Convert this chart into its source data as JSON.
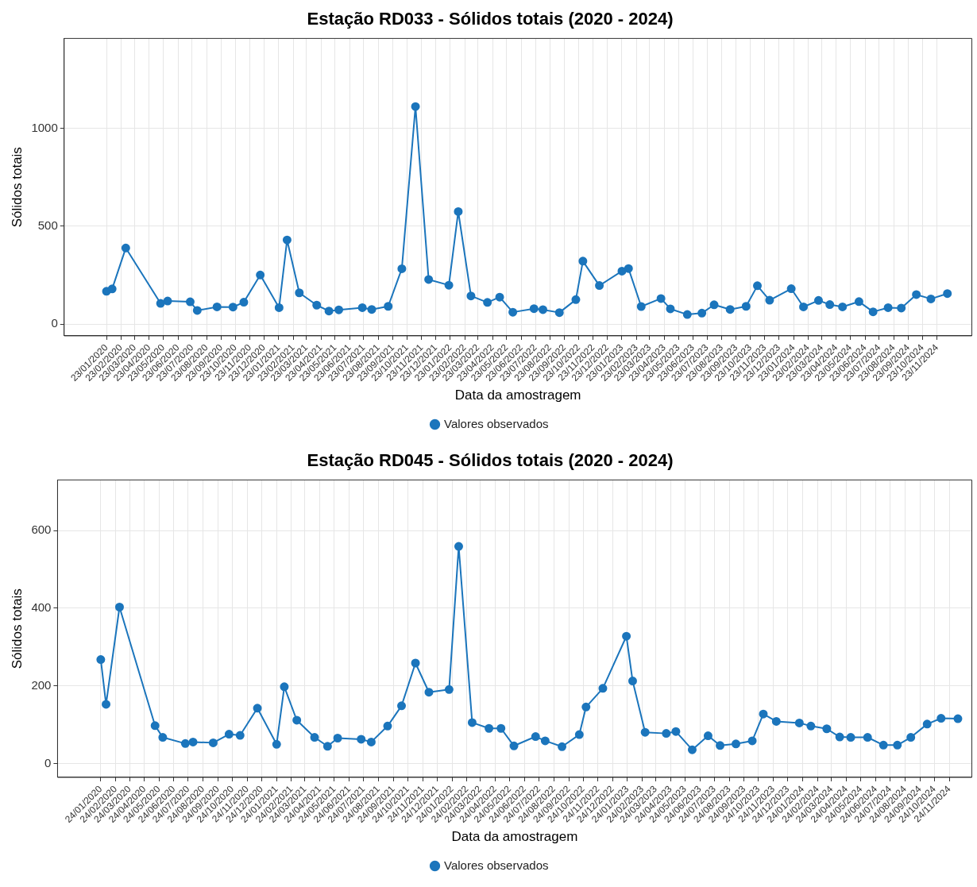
{
  "chart_data": [
    {
      "type": "line",
      "title": "Estação RD033 - Sólidos totais (2020 - 2024)",
      "xlabel": "Data da amostragem",
      "ylabel": "Sólidos totais",
      "legend": "bottom",
      "grid": true,
      "marker": "circle",
      "line_style": "solid",
      "xlim": [
        "2019-10-25",
        "2025-02-05"
      ],
      "ylim": [
        -60,
        1460
      ],
      "yticks": [
        0,
        500,
        1000
      ],
      "xticks": [
        {
          "value": "2020-01-23",
          "label": "23/01/2020"
        },
        {
          "value": "2020-02-23",
          "label": "23/02/2020"
        },
        {
          "value": "2020-03-23",
          "label": "23/03/2020"
        },
        {
          "value": "2020-04-23",
          "label": "23/04/2020"
        },
        {
          "value": "2020-05-23",
          "label": "23/05/2020"
        },
        {
          "value": "2020-06-23",
          "label": "23/06/2020"
        },
        {
          "value": "2020-07-23",
          "label": "23/07/2020"
        },
        {
          "value": "2020-08-23",
          "label": "23/08/2020"
        },
        {
          "value": "2020-09-23",
          "label": "23/09/2020"
        },
        {
          "value": "2020-10-23",
          "label": "23/10/2020"
        },
        {
          "value": "2020-11-23",
          "label": "23/11/2020"
        },
        {
          "value": "2020-12-23",
          "label": "23/12/2020"
        },
        {
          "value": "2021-01-23",
          "label": "23/01/2021"
        },
        {
          "value": "2021-02-23",
          "label": "23/02/2021"
        },
        {
          "value": "2021-03-23",
          "label": "23/03/2021"
        },
        {
          "value": "2021-04-23",
          "label": "23/04/2021"
        },
        {
          "value": "2021-05-23",
          "label": "23/05/2021"
        },
        {
          "value": "2021-06-23",
          "label": "23/06/2021"
        },
        {
          "value": "2021-07-23",
          "label": "23/07/2021"
        },
        {
          "value": "2021-08-23",
          "label": "23/08/2021"
        },
        {
          "value": "2021-09-23",
          "label": "23/09/2021"
        },
        {
          "value": "2021-10-23",
          "label": "23/10/2021"
        },
        {
          "value": "2021-11-23",
          "label": "23/11/2021"
        },
        {
          "value": "2021-12-23",
          "label": "23/12/2021"
        },
        {
          "value": "2022-01-23",
          "label": "23/01/2022"
        },
        {
          "value": "2022-02-23",
          "label": "23/02/2022"
        },
        {
          "value": "2022-03-23",
          "label": "23/03/2022"
        },
        {
          "value": "2022-04-23",
          "label": "23/04/2022"
        },
        {
          "value": "2022-05-23",
          "label": "23/05/2022"
        },
        {
          "value": "2022-06-23",
          "label": "23/06/2022"
        },
        {
          "value": "2022-07-23",
          "label": "23/07/2022"
        },
        {
          "value": "2022-08-23",
          "label": "23/08/2022"
        },
        {
          "value": "2022-09-23",
          "label": "23/09/2022"
        },
        {
          "value": "2022-10-23",
          "label": "23/10/2022"
        },
        {
          "value": "2022-11-23",
          "label": "23/11/2022"
        },
        {
          "value": "2022-12-23",
          "label": "23/12/2022"
        },
        {
          "value": "2023-01-23",
          "label": "23/01/2023"
        },
        {
          "value": "2023-02-23",
          "label": "23/02/2023"
        },
        {
          "value": "2023-03-23",
          "label": "23/03/2023"
        },
        {
          "value": "2023-04-23",
          "label": "23/04/2023"
        },
        {
          "value": "2023-05-23",
          "label": "23/05/2023"
        },
        {
          "value": "2023-06-23",
          "label": "23/06/2023"
        },
        {
          "value": "2023-07-23",
          "label": "23/07/2023"
        },
        {
          "value": "2023-08-23",
          "label": "23/08/2023"
        },
        {
          "value": "2023-09-23",
          "label": "23/09/2023"
        },
        {
          "value": "2023-10-23",
          "label": "23/10/2023"
        },
        {
          "value": "2023-11-23",
          "label": "23/11/2023"
        },
        {
          "value": "2023-12-23",
          "label": "23/12/2023"
        },
        {
          "value": "2024-01-23",
          "label": "23/01/2024"
        },
        {
          "value": "2024-02-23",
          "label": "23/02/2024"
        },
        {
          "value": "2024-03-23",
          "label": "23/03/2024"
        },
        {
          "value": "2024-04-23",
          "label": "23/04/2024"
        },
        {
          "value": "2024-05-23",
          "label": "23/05/2024"
        },
        {
          "value": "2024-06-23",
          "label": "23/06/2024"
        },
        {
          "value": "2024-07-23",
          "label": "23/07/2024"
        },
        {
          "value": "2024-08-23",
          "label": "23/08/2024"
        },
        {
          "value": "2024-09-23",
          "label": "23/09/2024"
        },
        {
          "value": "2024-10-23",
          "label": "23/10/2024"
        },
        {
          "value": "2024-11-23",
          "label": "23/11/2024"
        }
      ],
      "x": [
        "2020-01-23",
        "2020-02-04",
        "2020-03-04",
        "2020-05-17",
        "2020-06-01",
        "2020-07-19",
        "2020-08-03",
        "2020-09-14",
        "2020-10-18",
        "2020-11-10",
        "2020-12-15",
        "2021-01-24",
        "2021-02-10",
        "2021-03-08",
        "2021-04-14",
        "2021-05-10",
        "2021-05-31",
        "2021-07-20",
        "2021-08-09",
        "2021-09-13",
        "2021-10-12",
        "2021-11-10",
        "2021-12-08",
        "2022-01-20",
        "2022-02-09",
        "2022-03-08",
        "2022-04-12",
        "2022-05-08",
        "2022-06-05",
        "2022-07-20",
        "2022-08-08",
        "2022-09-12",
        "2022-10-17",
        "2022-11-01",
        "2022-12-06",
        "2023-01-23",
        "2023-02-06",
        "2023-03-05",
        "2023-04-16",
        "2023-05-06",
        "2023-06-11",
        "2023-07-12",
        "2023-08-07",
        "2023-09-10",
        "2023-10-14",
        "2023-11-07",
        "2023-12-03",
        "2024-01-18",
        "2024-02-13",
        "2024-03-16",
        "2024-04-09",
        "2024-05-06",
        "2024-06-10",
        "2024-07-10",
        "2024-08-11",
        "2024-09-08",
        "2024-10-10",
        "2024-11-10",
        "2024-12-15"
      ],
      "series": [
        {
          "name": "Valores observados",
          "color": "#1b75bc",
          "values": [
            168,
            180,
            389,
            106,
            118,
            114,
            70,
            88,
            87,
            112,
            251,
            84,
            430,
            160,
            97,
            67,
            73,
            84,
            75,
            91,
            283,
            1112,
            228,
            199,
            575,
            144,
            111,
            138,
            61,
            79,
            74,
            59,
            125,
            322,
            197,
            271,
            284,
            90,
            131,
            78,
            49,
            56,
            99,
            75,
            91,
            196,
            122,
            181,
            88,
            121,
            100,
            88,
            115,
            63,
            84,
            82,
            151,
            129,
            156
          ]
        }
      ]
    },
    {
      "type": "line",
      "title": "Estação RD045 - Sólidos totais (2020 - 2024)",
      "xlabel": "Data da amostragem",
      "ylabel": "Sólidos totais",
      "legend": "bottom",
      "grid": true,
      "marker": "circle",
      "line_style": "solid",
      "xlim": [
        "2019-10-26",
        "2025-01-10"
      ],
      "ylim": [
        -35,
        730
      ],
      "yticks": [
        0,
        200,
        400,
        600
      ],
      "xticks": [
        {
          "value": "2020-01-24",
          "label": "24/01/2020"
        },
        {
          "value": "2020-02-24",
          "label": "24/02/2020"
        },
        {
          "value": "2020-03-24",
          "label": "24/03/2020"
        },
        {
          "value": "2020-04-24",
          "label": "24/04/2020"
        },
        {
          "value": "2020-05-24",
          "label": "24/05/2020"
        },
        {
          "value": "2020-06-24",
          "label": "24/06/2020"
        },
        {
          "value": "2020-07-24",
          "label": "24/07/2020"
        },
        {
          "value": "2020-08-24",
          "label": "24/08/2020"
        },
        {
          "value": "2020-09-24",
          "label": "24/09/2020"
        },
        {
          "value": "2020-10-24",
          "label": "24/10/2020"
        },
        {
          "value": "2020-11-24",
          "label": "24/11/2020"
        },
        {
          "value": "2020-12-24",
          "label": "24/12/2020"
        },
        {
          "value": "2021-01-24",
          "label": "24/01/2021"
        },
        {
          "value": "2021-02-24",
          "label": "24/02/2021"
        },
        {
          "value": "2021-03-24",
          "label": "24/03/2021"
        },
        {
          "value": "2021-04-24",
          "label": "24/04/2021"
        },
        {
          "value": "2021-05-24",
          "label": "24/05/2021"
        },
        {
          "value": "2021-06-24",
          "label": "24/06/2021"
        },
        {
          "value": "2021-07-24",
          "label": "24/07/2021"
        },
        {
          "value": "2021-08-24",
          "label": "24/08/2021"
        },
        {
          "value": "2021-09-24",
          "label": "24/09/2021"
        },
        {
          "value": "2021-10-24",
          "label": "24/10/2021"
        },
        {
          "value": "2021-11-24",
          "label": "24/11/2021"
        },
        {
          "value": "2021-12-24",
          "label": "24/12/2021"
        },
        {
          "value": "2022-01-24",
          "label": "24/01/2022"
        },
        {
          "value": "2022-02-24",
          "label": "24/02/2022"
        },
        {
          "value": "2022-03-24",
          "label": "24/03/2022"
        },
        {
          "value": "2022-04-24",
          "label": "24/04/2022"
        },
        {
          "value": "2022-05-24",
          "label": "24/05/2022"
        },
        {
          "value": "2022-06-24",
          "label": "24/06/2022"
        },
        {
          "value": "2022-07-24",
          "label": "24/07/2022"
        },
        {
          "value": "2022-08-24",
          "label": "24/08/2022"
        },
        {
          "value": "2022-09-24",
          "label": "24/09/2022"
        },
        {
          "value": "2022-10-24",
          "label": "24/10/2022"
        },
        {
          "value": "2022-11-24",
          "label": "24/11/2022"
        },
        {
          "value": "2022-12-24",
          "label": "24/12/2022"
        },
        {
          "value": "2023-01-24",
          "label": "24/01/2023"
        },
        {
          "value": "2023-02-24",
          "label": "24/02/2023"
        },
        {
          "value": "2023-03-24",
          "label": "24/03/2023"
        },
        {
          "value": "2023-04-24",
          "label": "24/04/2023"
        },
        {
          "value": "2023-05-24",
          "label": "24/05/2023"
        },
        {
          "value": "2023-06-24",
          "label": "24/06/2023"
        },
        {
          "value": "2023-07-24",
          "label": "24/07/2023"
        },
        {
          "value": "2023-08-24",
          "label": "24/08/2023"
        },
        {
          "value": "2023-09-24",
          "label": "24/09/2023"
        },
        {
          "value": "2023-10-24",
          "label": "24/10/2023"
        },
        {
          "value": "2023-11-24",
          "label": "24/11/2023"
        },
        {
          "value": "2023-12-24",
          "label": "24/12/2023"
        },
        {
          "value": "2024-01-24",
          "label": "24/01/2024"
        },
        {
          "value": "2024-02-24",
          "label": "24/02/2024"
        },
        {
          "value": "2024-03-24",
          "label": "24/03/2024"
        },
        {
          "value": "2024-04-24",
          "label": "24/04/2024"
        },
        {
          "value": "2024-05-24",
          "label": "24/05/2024"
        },
        {
          "value": "2024-06-24",
          "label": "24/06/2024"
        },
        {
          "value": "2024-07-24",
          "label": "24/07/2024"
        },
        {
          "value": "2024-08-24",
          "label": "24/08/2024"
        },
        {
          "value": "2024-09-24",
          "label": "24/09/2024"
        },
        {
          "value": "2024-10-24",
          "label": "24/10/2024"
        },
        {
          "value": "2024-11-24",
          "label": "24/11/2024"
        }
      ],
      "x": [
        "2020-01-24",
        "2020-02-04",
        "2020-03-03",
        "2020-05-16",
        "2020-06-01",
        "2020-07-18",
        "2020-08-03",
        "2020-09-14",
        "2020-10-17",
        "2020-11-09",
        "2020-12-15",
        "2021-01-24",
        "2021-02-09",
        "2021-03-07",
        "2021-04-13",
        "2021-05-10",
        "2021-05-31",
        "2021-07-19",
        "2021-08-09",
        "2021-09-12",
        "2021-10-11",
        "2021-11-09",
        "2021-12-07",
        "2022-01-18",
        "2022-02-07",
        "2022-03-07",
        "2022-04-11",
        "2022-05-06",
        "2022-06-02",
        "2022-07-17",
        "2022-08-06",
        "2022-09-10",
        "2022-10-16",
        "2022-10-30",
        "2022-12-04",
        "2023-01-22",
        "2023-02-04",
        "2023-03-02",
        "2023-04-15",
        "2023-05-05",
        "2023-06-08",
        "2023-07-11",
        "2023-08-05",
        "2023-09-07",
        "2023-10-11",
        "2023-11-03",
        "2023-11-30",
        "2024-01-17",
        "2024-02-10",
        "2024-03-14",
        "2024-04-10",
        "2024-05-03",
        "2024-06-07",
        "2024-07-10",
        "2024-08-08",
        "2024-09-05",
        "2024-10-09",
        "2024-11-07",
        "2024-12-12"
      ],
      "series": [
        {
          "name": "Valores observados",
          "color": "#1b75bc",
          "values": [
            268,
            153,
            403,
            98,
            68,
            52,
            56,
            54,
            76,
            73,
            143,
            50,
            198,
            112,
            68,
            45,
            66,
            63,
            56,
            97,
            149,
            259,
            184,
            191,
            559,
            106,
            91,
            91,
            46,
            70,
            59,
            44,
            75,
            146,
            194,
            328,
            213,
            81,
            78,
            83,
            36,
            72,
            47,
            51,
            59,
            128,
            109,
            105,
            97,
            90,
            69,
            68,
            68,
            48,
            48,
            68,
            102,
            117,
            116
          ]
        }
      ]
    }
  ]
}
